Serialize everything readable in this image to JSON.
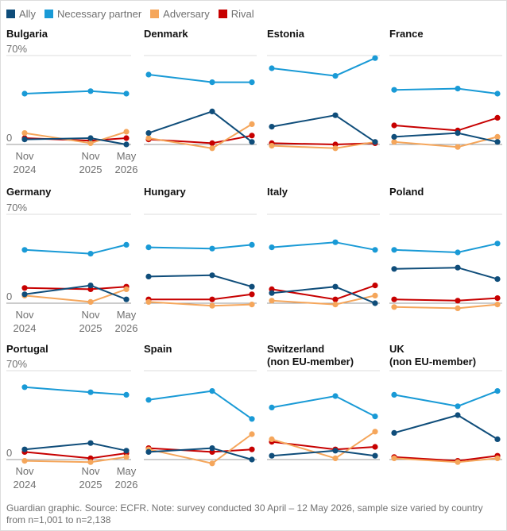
{
  "legend": [
    {
      "label": "Ally",
      "color": "#0f4d7a"
    },
    {
      "label": "Necessary partner",
      "color": "#199ad6"
    },
    {
      "label": "Adversary",
      "color": "#f5a65b"
    },
    {
      "label": "Rival",
      "color": "#c70000"
    }
  ],
  "y_top_label": "70%",
  "y_bottom_label": "0",
  "x_labels": [
    {
      "line1": "Nov",
      "line2": "2024"
    },
    {
      "line1": "Nov",
      "line2": "2025"
    },
    {
      "line1": "May",
      "line2": "2026"
    }
  ],
  "footer": "Guardian graphic. Source: ECFR. Note: survey conducted 30 April – 12 May 2026, sample size varied by country from n=1,001 to n=2,138",
  "chart_data": {
    "type": "line",
    "x": [
      "Nov 2024",
      "Nov 2025",
      "May 2026"
    ],
    "ylim": [
      0,
      70
    ],
    "series_order": [
      "Ally",
      "Necessary partner",
      "Adversary",
      "Rival"
    ],
    "panels": [
      {
        "title": "Bulgaria",
        "subtitle": "",
        "series": {
          "Ally": [
            4,
            5,
            0
          ],
          "Necessary partner": [
            40,
            42,
            40
          ],
          "Adversary": [
            9,
            1,
            10
          ],
          "Rival": [
            5,
            3,
            5
          ]
        }
      },
      {
        "title": "Denmark",
        "subtitle": "",
        "series": {
          "Ally": [
            9,
            26,
            2
          ],
          "Necessary partner": [
            55,
            49,
            49
          ],
          "Adversary": [
            5,
            -3,
            16
          ],
          "Rival": [
            4,
            1,
            7
          ]
        }
      },
      {
        "title": "Estonia",
        "subtitle": "",
        "series": {
          "Ally": [
            14,
            23,
            2
          ],
          "Necessary partner": [
            60,
            54,
            68
          ],
          "Adversary": [
            -1,
            -3,
            2
          ],
          "Rival": [
            1,
            0,
            1
          ]
        }
      },
      {
        "title": "France",
        "subtitle": "",
        "series": {
          "Ally": [
            6,
            9,
            2
          ],
          "Necessary partner": [
            43,
            44,
            40
          ],
          "Adversary": [
            2,
            -2,
            6
          ],
          "Rival": [
            15,
            11,
            21
          ]
        }
      },
      {
        "title": "Germany",
        "subtitle": "",
        "series": {
          "Ally": [
            7,
            14,
            3
          ],
          "Necessary partner": [
            42,
            39,
            46
          ],
          "Adversary": [
            6,
            1,
            11
          ],
          "Rival": [
            12,
            11,
            13
          ]
        }
      },
      {
        "title": "Hungary",
        "subtitle": "",
        "series": {
          "Ally": [
            21,
            22,
            13
          ],
          "Necessary partner": [
            44,
            43,
            46
          ],
          "Adversary": [
            1,
            -2,
            -1
          ],
          "Rival": [
            3,
            3,
            7
          ]
        }
      },
      {
        "title": "Italy",
        "subtitle": "",
        "series": {
          "Ally": [
            8,
            13,
            0
          ],
          "Necessary partner": [
            44,
            48,
            42
          ],
          "Adversary": [
            2,
            -1,
            6
          ],
          "Rival": [
            11,
            3,
            14
          ]
        }
      },
      {
        "title": "Poland",
        "subtitle": "",
        "series": {
          "Ally": [
            27,
            28,
            19
          ],
          "Necessary partner": [
            42,
            40,
            47
          ],
          "Adversary": [
            -3,
            -4,
            -1
          ],
          "Rival": [
            3,
            2,
            4
          ]
        }
      },
      {
        "title": "Portugal",
        "subtitle": "",
        "series": {
          "Ally": [
            8,
            13,
            7
          ],
          "Necessary partner": [
            57,
            53,
            51
          ],
          "Adversary": [
            -1,
            -2,
            2
          ],
          "Rival": [
            6,
            1,
            5
          ]
        }
      },
      {
        "title": "Spain",
        "subtitle": "",
        "series": {
          "Ally": [
            6,
            9,
            0
          ],
          "Necessary partner": [
            47,
            54,
            32
          ],
          "Adversary": [
            8,
            -3,
            20
          ],
          "Rival": [
            9,
            6,
            8
          ]
        }
      },
      {
        "title": "Switzerland",
        "subtitle": "(non EU-member)",
        "series": {
          "Ally": [
            3,
            7,
            3
          ],
          "Necessary partner": [
            41,
            50,
            34
          ],
          "Adversary": [
            16,
            1,
            22
          ],
          "Rival": [
            14,
            8,
            10
          ]
        }
      },
      {
        "title": "UK",
        "subtitle": "(non EU-member)",
        "series": {
          "Ally": [
            21,
            35,
            16
          ],
          "Necessary partner": [
            51,
            42,
            54
          ],
          "Adversary": [
            1,
            -2,
            1
          ],
          "Rival": [
            2,
            -1,
            3
          ]
        }
      }
    ]
  }
}
